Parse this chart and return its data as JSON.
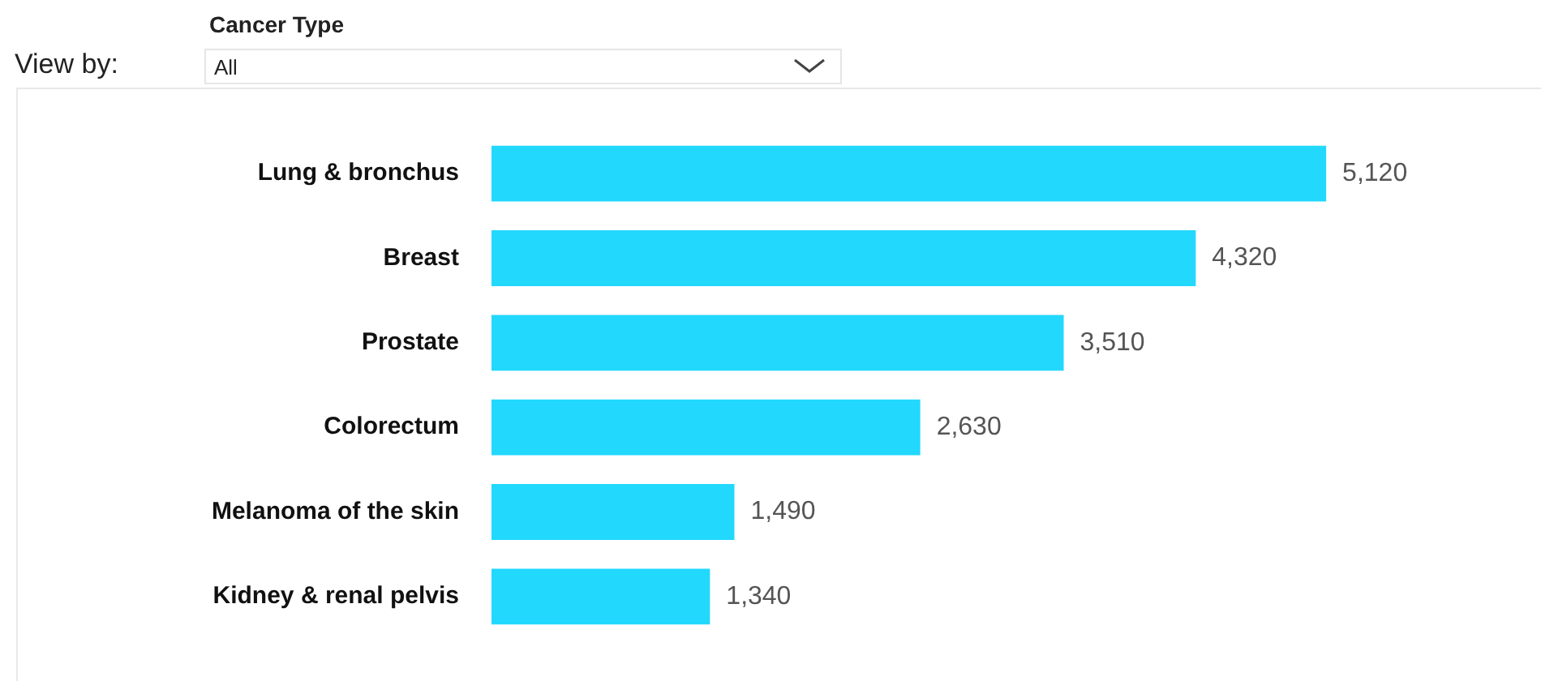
{
  "chart_data": {
    "type": "bar",
    "orientation": "horizontal",
    "categories": [
      "Lung & bronchus",
      "Breast",
      "Prostate",
      "Colorectum",
      "Melanoma of the skin",
      "Kidney & renal pelvis"
    ],
    "values": [
      5120,
      4320,
      3510,
      2630,
      1490,
      1340
    ],
    "value_labels": [
      "5,120",
      "4,320",
      "3,510",
      "2,630",
      "1,490",
      "1,340"
    ],
    "color": "#22d8fd",
    "tick_labels": "y",
    "annotations": [
      "Cancer Type",
      "View by:",
      "All"
    ]
  }
}
